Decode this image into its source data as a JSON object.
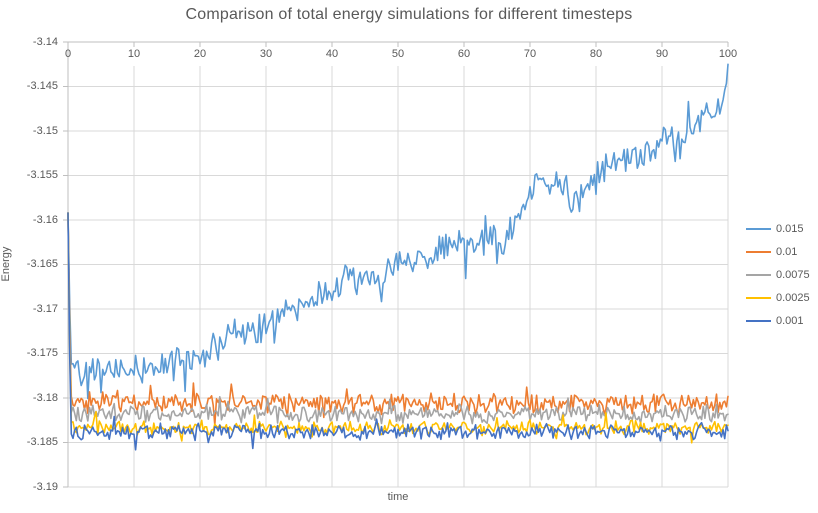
{
  "chart_data": {
    "type": "line",
    "title": "Comparison of total energy simulations for different timesteps",
    "xlabel": "time",
    "ylabel": "Energy",
    "xlim": [
      0,
      100
    ],
    "ylim": [
      -3.19,
      -3.14
    ],
    "x_ticks": [
      0,
      10,
      20,
      30,
      40,
      50,
      60,
      70,
      80,
      90,
      100
    ],
    "y_tick_values": [
      -3.14,
      -3.145,
      -3.15,
      -3.155,
      -3.16,
      -3.165,
      -3.17,
      -3.175,
      -3.18,
      -3.185,
      -3.19
    ],
    "y_tick_labels": [
      "-3.14",
      "-3.145",
      "-3.15",
      "-3.155",
      "-3.16",
      "-3.165",
      "-3.17",
      "-3.175",
      "-3.18",
      "-3.185",
      "-3.19"
    ],
    "grid": true,
    "legend_position": "right",
    "background": "#FFFFFF",
    "text_color": "#595959",
    "axis_color": "#BFBFBF",
    "gridline_color": "#D9D9D9",
    "noise_seed": 42,
    "x_step": 0.25,
    "series": [
      {
        "name": "0.015",
        "color": "#5B9BD5",
        "noise_amplitude": 0.0014,
        "spike_chance": 0.07,
        "anchors": [
          [
            0,
            -3.1592
          ],
          [
            0.4,
            -3.1758
          ],
          [
            3,
            -3.1768
          ],
          [
            8,
            -3.1772
          ],
          [
            12,
            -3.1766
          ],
          [
            16,
            -3.1762
          ],
          [
            20,
            -3.175
          ],
          [
            24,
            -3.1735
          ],
          [
            28,
            -3.1724
          ],
          [
            30,
            -3.1716
          ],
          [
            33,
            -3.1704
          ],
          [
            36,
            -3.1696
          ],
          [
            40,
            -3.168
          ],
          [
            43,
            -3.1666
          ],
          [
            46,
            -3.1668
          ],
          [
            50,
            -3.1655
          ],
          [
            53,
            -3.1645
          ],
          [
            56,
            -3.1636
          ],
          [
            60,
            -3.1626
          ],
          [
            63,
            -3.162
          ],
          [
            66,
            -3.1636
          ],
          [
            68,
            -3.1596
          ],
          [
            70,
            -3.1578
          ],
          [
            72,
            -3.1553
          ],
          [
            75,
            -3.1562
          ],
          [
            77,
            -3.158
          ],
          [
            80,
            -3.1556
          ],
          [
            83,
            -3.1533
          ],
          [
            85,
            -3.1526
          ],
          [
            87,
            -3.1537
          ],
          [
            90,
            -3.1506
          ],
          [
            93,
            -3.1513
          ],
          [
            95,
            -3.1491
          ],
          [
            97,
            -3.1478
          ],
          [
            99,
            -3.1473
          ],
          [
            100,
            -3.1438
          ]
        ]
      },
      {
        "name": "0.01",
        "color": "#ED7D31",
        "noise_amplitude": 0.0009,
        "spike_chance": 0.05,
        "anchors": [
          [
            0,
            -3.1592
          ],
          [
            0.4,
            -3.1805
          ],
          [
            100,
            -3.1806
          ]
        ]
      },
      {
        "name": "0.0075",
        "color": "#A5A5A5",
        "noise_amplitude": 0.0008,
        "spike_chance": 0.04,
        "anchors": [
          [
            0,
            -3.1592
          ],
          [
            0.4,
            -3.1818
          ],
          [
            100,
            -3.1818
          ]
        ]
      },
      {
        "name": "0.0025",
        "color": "#FFC000",
        "noise_amplitude": 0.0006,
        "spike_chance": 0.04,
        "anchors": [
          [
            0,
            -3.1592
          ],
          [
            0.4,
            -3.1833
          ],
          [
            100,
            -3.1833
          ]
        ]
      },
      {
        "name": "0.001",
        "color": "#4472C4",
        "noise_amplitude": 0.0007,
        "spike_chance": 0.04,
        "anchors": [
          [
            0,
            -3.1592
          ],
          [
            0.4,
            -3.1838
          ],
          [
            100,
            -3.1838
          ]
        ]
      }
    ]
  }
}
